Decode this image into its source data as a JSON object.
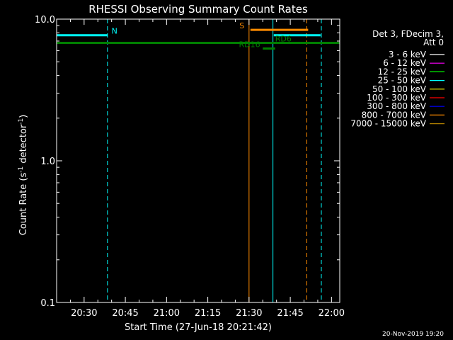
{
  "colors": {
    "background": "#000000",
    "axis": "#ffffff",
    "cyan": "#00ffff",
    "orange": "#ff8c00",
    "green": "#008000",
    "legend_swatches": [
      "#ffffff",
      "#ff00ff",
      "#00ff00",
      "#00ffff",
      "#ffff00",
      "#ff0000",
      "#0000ff",
      "#ff8c00",
      "#b08000"
    ]
  },
  "chart_data": {
    "type": "line",
    "title": "RHESSI Observing Summary Count Rates",
    "xlabel": "Start Time (27-Jun-18 20:21:42)",
    "ylabel_parts": {
      "main": "Count Rate (s",
      "sup1": "-1",
      "mid": " detector",
      "sup2": "-1",
      "end": ")"
    },
    "footer_date": "20-Nov-2019 19:20",
    "x_range_minutes": [
      20.0,
      123.0
    ],
    "y_range": [
      0.1,
      10.0
    ],
    "y_scale": "log",
    "x_ticks": [
      {
        "label": "20:30",
        "minute": 30
      },
      {
        "label": "20:45",
        "minute": 45
      },
      {
        "label": "21:00",
        "minute": 60
      },
      {
        "label": "21:15",
        "minute": 75
      },
      {
        "label": "21:30",
        "minute": 90
      },
      {
        "label": "21:45",
        "minute": 105
      },
      {
        "label": "22:00",
        "minute": 120
      }
    ],
    "y_ticks": [
      {
        "label": "10.0",
        "value": 10.0
      },
      {
        "label": "1.0",
        "value": 1.0
      },
      {
        "label": "0.1",
        "value": 0.1
      }
    ],
    "legend": {
      "header": [
        "Det 3, FDecim 3,",
        "Att 0"
      ],
      "placement": "right",
      "entries": [
        {
          "label": "3 - 6 keV",
          "color": "#ffffff"
        },
        {
          "label": "6 - 12 keV",
          "color": "#ff00ff"
        },
        {
          "label": "12 - 25 keV",
          "color": "#00ff00"
        },
        {
          "label": "25 - 50 keV",
          "color": "#00ffff"
        },
        {
          "label": "50 - 100 keV",
          "color": "#ffff00"
        },
        {
          "label": "100 - 300 keV",
          "color": "#ff0000"
        },
        {
          "label": "300 - 800 keV",
          "color": "#0000ff"
        },
        {
          "label": "800 - 7000 keV",
          "color": "#ff8c00"
        },
        {
          "label": "7000 - 15000 keV",
          "color": "#b08000"
        }
      ]
    },
    "segments": [
      {
        "name": "N",
        "color": "#00ffff",
        "x": [
          20.0,
          38.5
        ],
        "y": 7.7,
        "width": 3
      },
      {
        "name": "",
        "color": "#008000",
        "x": [
          20.0,
          126.0
        ],
        "y": 6.8,
        "width": 3
      },
      {
        "name": "S",
        "color": "#ff8c00",
        "x": [
          90.5,
          111.5
        ],
        "y": 8.4,
        "width": 3
      },
      {
        "name": "",
        "color": "#00ffff",
        "x": [
          99.0,
          116.0
        ],
        "y": 7.7,
        "width": 3
      },
      {
        "name": "",
        "color": "#008000",
        "x": [
          95.0,
          99.5
        ],
        "y": 6.2,
        "width": 3
      }
    ],
    "vlines": [
      {
        "color": "#00ffff",
        "x": 20.0,
        "dash": false
      },
      {
        "color": "#00ffff",
        "x": 38.5,
        "dash": true
      },
      {
        "color": "#ff8c00",
        "x": 90.0,
        "dash": false
      },
      {
        "color": "#00ffff",
        "x": 98.7,
        "dash": false
      },
      {
        "color": "#ff8c00",
        "x": 111.0,
        "dash": true
      },
      {
        "color": "#00ffff",
        "x": 116.3,
        "dash": true
      }
    ],
    "annotations": [
      {
        "text": "N",
        "color": "#00ffff",
        "x": 40.0,
        "y": 7.7
      },
      {
        "text": "S",
        "color": "#ff8c00",
        "x": 86.5,
        "y": 8.4
      },
      {
        "text": "RD6",
        "color": "#008000",
        "x": 99.5,
        "y": 6.8
      },
      {
        "text": "RD16",
        "color": "#008000",
        "x": 86.3,
        "y": 6.2
      }
    ]
  }
}
